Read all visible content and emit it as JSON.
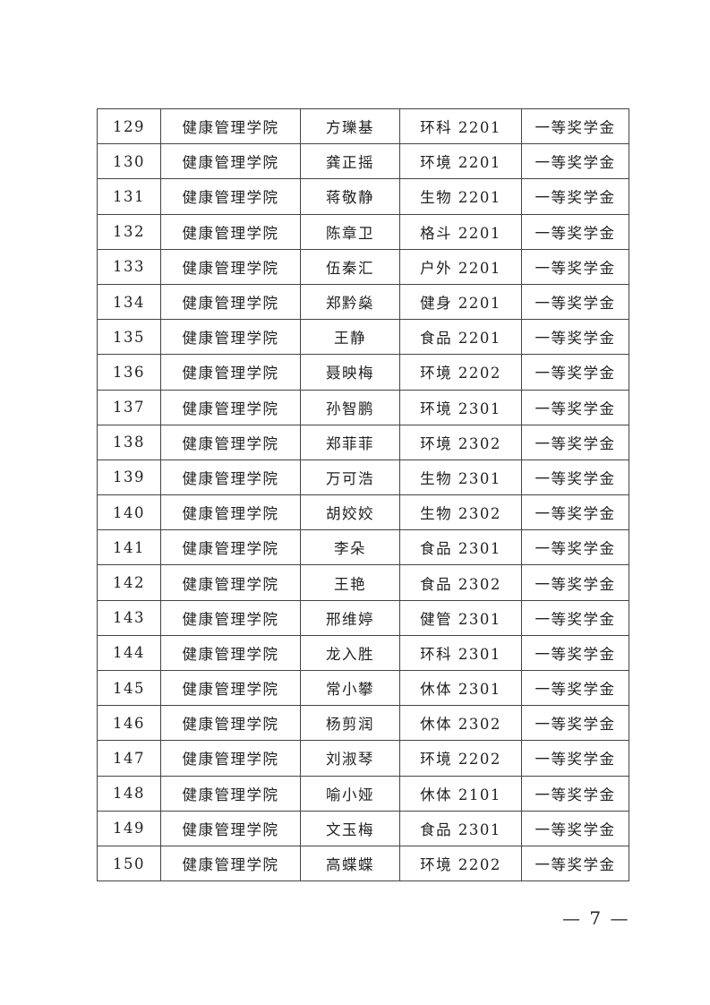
{
  "rows": [
    [
      "129",
      "健康管理学院",
      "方瓅基",
      "环科 2201",
      "一等奖学金"
    ],
    [
      "130",
      "健康管理学院",
      "龚正摇",
      "环境 2201",
      "一等奖学金"
    ],
    [
      "131",
      "健康管理学院",
      "蒋敬静",
      "生物 2201",
      "一等奖学金"
    ],
    [
      "132",
      "健康管理学院",
      "陈章卫",
      "格斗 2201",
      "一等奖学金"
    ],
    [
      "133",
      "健康管理学院",
      "伍秦汇",
      "户外 2201",
      "一等奖学金"
    ],
    [
      "134",
      "健康管理学院",
      "郑黔燊",
      "健身 2201",
      "一等奖学金"
    ],
    [
      "135",
      "健康管理学院",
      "王静",
      "食品 2201",
      "一等奖学金"
    ],
    [
      "136",
      "健康管理学院",
      "聂映梅",
      "环境 2202",
      "一等奖学金"
    ],
    [
      "137",
      "健康管理学院",
      "孙智鹏",
      "环境 2301",
      "一等奖学金"
    ],
    [
      "138",
      "健康管理学院",
      "郑菲菲",
      "环境 2302",
      "一等奖学金"
    ],
    [
      "139",
      "健康管理学院",
      "万可浩",
      "生物 2301",
      "一等奖学金"
    ],
    [
      "140",
      "健康管理学院",
      "胡姣姣",
      "生物 2302",
      "一等奖学金"
    ],
    [
      "141",
      "健康管理学院",
      "李朵",
      "食品 2301",
      "一等奖学金"
    ],
    [
      "142",
      "健康管理学院",
      "王艳",
      "食品 2302",
      "一等奖学金"
    ],
    [
      "143",
      "健康管理学院",
      "邢维婷",
      "健管 2301",
      "一等奖学金"
    ],
    [
      "144",
      "健康管理学院",
      "龙入胜",
      "环科 2301",
      "一等奖学金"
    ],
    [
      "145",
      "健康管理学院",
      "常小攀",
      "休体 2301",
      "一等奖学金"
    ],
    [
      "146",
      "健康管理学院",
      "杨剪润",
      "休体 2302",
      "一等奖学金"
    ],
    [
      "147",
      "健康管理学院",
      "刘淑琴",
      "环境 2202",
      "一等奖学金"
    ],
    [
      "148",
      "健康管理学院",
      "喻小娅",
      "休体 2101",
      "一等奖学金"
    ],
    [
      "149",
      "健康管理学院",
      "文玉梅",
      "食品 2301",
      "一等奖学金"
    ],
    [
      "150",
      "健康管理学院",
      "高蝶蝶",
      "环境 2202",
      "一等奖学金"
    ]
  ],
  "page_number": "— 7 —"
}
